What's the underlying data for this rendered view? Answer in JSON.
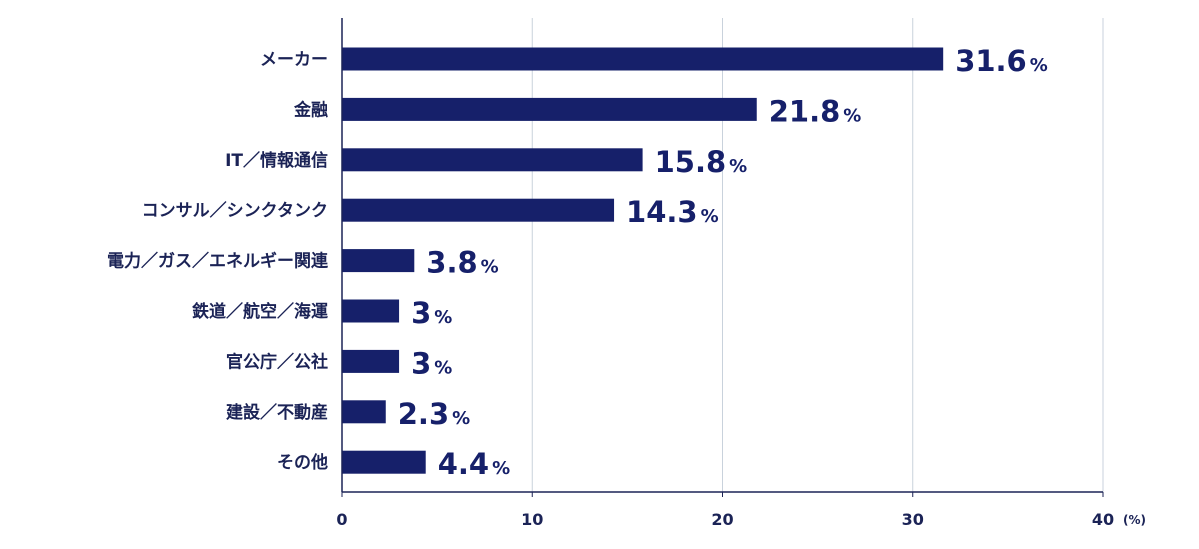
{
  "chart_data": {
    "type": "bar",
    "orientation": "horizontal",
    "categories": [
      "メーカー",
      "金融",
      "IT／情報通信",
      "コンサル／シンクタンク",
      "電力／ガス／エネルギー関連",
      "鉄道／航空／海運",
      "官公庁／公社",
      "建設／不動産",
      "その他"
    ],
    "values": [
      31.6,
      21.8,
      15.8,
      14.3,
      3.8,
      3,
      3,
      2.3,
      4.4
    ],
    "value_labels": [
      "31.6",
      "21.8",
      "15.8",
      "14.3",
      "3.8",
      "3",
      "3",
      "2.3",
      "4.4"
    ],
    "value_suffix": "%",
    "xlim": [
      0,
      40
    ],
    "x_ticks": [
      0,
      10,
      20,
      30,
      40
    ],
    "x_tick_labels": [
      "0",
      "10",
      "20",
      "30",
      "40"
    ],
    "x_unit": "(%)",
    "grid": true,
    "bar_color": "#16206a",
    "grid_color": "#c9d2dc",
    "text_color": "#1b2356"
  }
}
